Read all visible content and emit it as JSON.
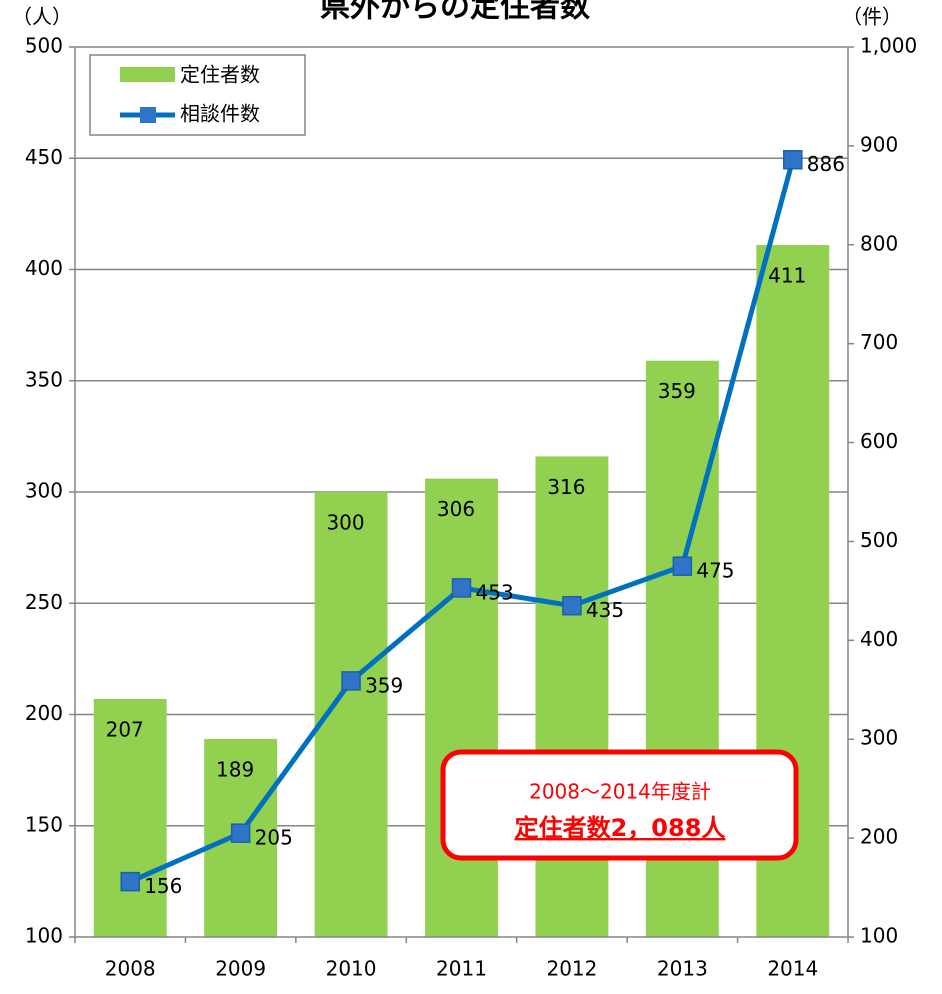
{
  "chart_data": {
    "type": "bar",
    "title": "県外からの定住者数",
    "y_unit": "（人）",
    "y2_unit": "（件）",
    "categories": [
      "2008",
      "2009",
      "2010",
      "2011",
      "2012",
      "2013",
      "2014"
    ],
    "series": [
      {
        "name": "定住者数",
        "type": "bar",
        "color": "#92d050",
        "values": [
          207,
          189,
          300,
          306,
          316,
          359,
          411
        ]
      },
      {
        "name": "相談件数",
        "type": "line",
        "color": "#0070c0",
        "axis": "y2",
        "values": [
          156,
          205,
          359,
          453,
          435,
          475,
          886
        ]
      }
    ],
    "ylim": [
      100,
      500
    ],
    "yticks": [
      100,
      150,
      200,
      250,
      300,
      350,
      400,
      450,
      500
    ],
    "y2lim": [
      100,
      1000
    ],
    "y2ticks": [
      100,
      200,
      300,
      400,
      500,
      600,
      700,
      800,
      900,
      {
        "value": 1000,
        "label": "1,000"
      }
    ],
    "grid": true,
    "legend": "upper left",
    "annotation": [
      "2008～2014年度計",
      "定住者数2，088人"
    ]
  }
}
